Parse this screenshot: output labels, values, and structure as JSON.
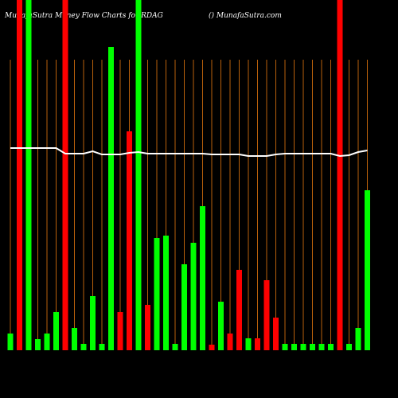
{
  "chart_data": {
    "type": "bar",
    "title": "MunafaSutra  Money Flow  Charts for RDAG",
    "subtitle": "() MunafaSutra.com",
    "categories": [
      null,
      null,
      null,
      null,
      null,
      null,
      null,
      null,
      null,
      null,
      null,
      null,
      null,
      null,
      null,
      null,
      null,
      null,
      null,
      null,
      null,
      null,
      null,
      null,
      null,
      null,
      null,
      null,
      null,
      null,
      null,
      null,
      null,
      null,
      null,
      null,
      null,
      null,
      null,
      null
    ],
    "values": [
      21,
      440,
      440,
      14,
      21,
      48,
      440,
      28,
      8,
      68,
      8,
      381,
      48,
      275,
      440,
      57,
      141,
      144,
      8,
      108,
      135,
      181,
      7,
      61,
      21,
      101,
      15,
      15,
      88,
      41,
      8,
      8,
      8,
      8,
      8,
      8,
      440,
      8,
      28,
      201
    ],
    "colors": [
      "#00ff00",
      "#ff0000",
      "#00ff00",
      "#00ff00",
      "#00ff00",
      "#00ff00",
      "#ff0000",
      "#00ff00",
      "#00ff00",
      "#00ff00",
      "#00ff00",
      "#00ff00",
      "#ff0000",
      "#ff0000",
      "#00ff00",
      "#ff0000",
      "#00ff00",
      "#00ff00",
      "#00ff00",
      "#00ff00",
      "#00ff00",
      "#00ff00",
      "#ff0000",
      "#00ff00",
      "#ff0000",
      "#ff0000",
      "#00ff00",
      "#ff0000",
      "#ff0000",
      "#ff0000",
      "#00ff00",
      "#00ff00",
      "#00ff00",
      "#00ff00",
      "#00ff00",
      "#00ff00",
      "#ff0000",
      "#00ff00",
      "#00ff00",
      "#00ff00"
    ],
    "line_values": [
      254,
      254,
      254,
      254,
      254,
      254,
      247,
      247,
      247,
      250,
      246,
      246,
      246,
      248,
      249,
      247,
      247,
      247,
      247,
      247,
      247,
      247,
      246,
      246,
      246,
      246,
      244,
      244,
      244,
      246,
      247,
      247,
      247,
      247,
      247,
      247,
      244,
      245,
      249,
      251
    ],
    "line_color": "#ffffff",
    "grid_color": "#b8600b",
    "ylim": [
      0,
      440
    ]
  }
}
